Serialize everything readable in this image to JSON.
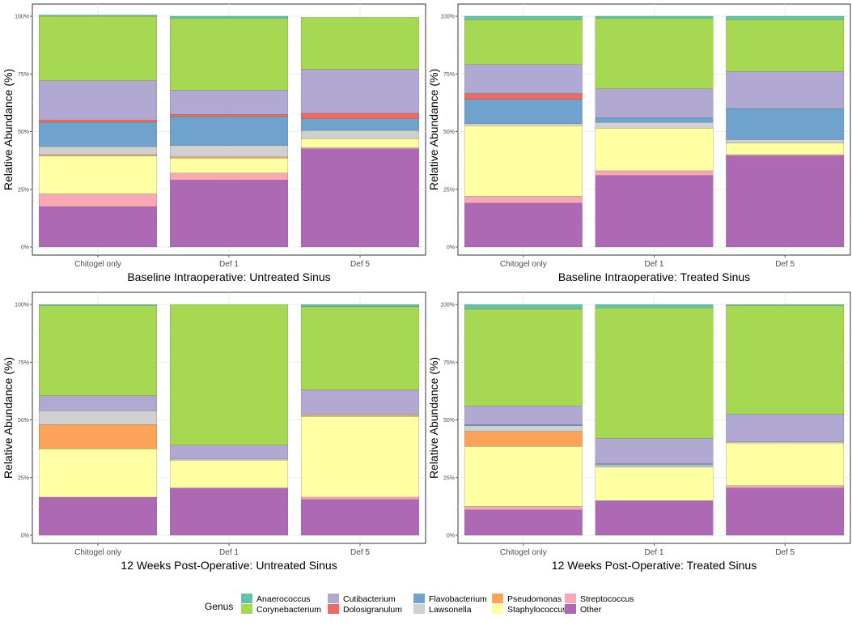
{
  "colors": {
    "Anaerococcus": "#66C2A5",
    "Corynebacterium": "#A6D854",
    "Cutibacterium": "#B1A9D2",
    "Dolosigranulum": "#EA6A64",
    "Flavobacterium": "#6FA3CD",
    "Lawsonella": "#D0D0D0",
    "Pseudomonas": "#FBA35B",
    "Staphylococcus": "#FFFFA3",
    "Streptococcus": "#FBA8B6",
    "Other": "#AD69B4"
  },
  "legend": {
    "title": "Genus",
    "entries": [
      "Anaerococcus",
      "Corynebacterium",
      "Cutibacterium",
      "Dolosigranulum",
      "Flavobacterium",
      "Lawsonella",
      "Pseudomonas",
      "Staphylococcus",
      "Streptococcus",
      "Other"
    ]
  },
  "chart_data": [
    {
      "type": "bar",
      "stacked": true,
      "title": "Baseline Intraoperative: Untreated Sinus",
      "ylabel": "Relative Abundance (%)",
      "ylim": [
        0,
        100
      ],
      "yticks": [
        "0%",
        "25%",
        "50%",
        "75%",
        "100%"
      ],
      "categories": [
        "Chitogel only",
        "Def 1",
        "Def 5"
      ],
      "series": [
        {
          "name": "Other",
          "values": [
            17.5,
            29,
            42.5
          ]
        },
        {
          "name": "Streptococcus",
          "values": [
            5.5,
            3,
            0.5
          ]
        },
        {
          "name": "Staphylococcus",
          "values": [
            16.5,
            6.5,
            4
          ]
        },
        {
          "name": "Pseudomonas",
          "values": [
            0.5,
            0.5,
            0
          ]
        },
        {
          "name": "Lawsonella",
          "values": [
            3.5,
            5,
            3.5
          ]
        },
        {
          "name": "Flavobacterium",
          "values": [
            10.5,
            12.5,
            5
          ]
        },
        {
          "name": "Dolosigranulum",
          "values": [
            1,
            1,
            2.5
          ]
        },
        {
          "name": "Cutibacterium",
          "values": [
            17,
            10.5,
            19
          ]
        },
        {
          "name": "Corynebacterium",
          "values": [
            28,
            31,
            22.5
          ]
        },
        {
          "name": "Anaerococcus",
          "values": [
            0.5,
            1,
            0
          ]
        }
      ]
    },
    {
      "type": "bar",
      "stacked": true,
      "title": "Baseline Intraoperative: Treated Sinus",
      "ylabel": "Relative Abundance (%)",
      "ylim": [
        0,
        100
      ],
      "yticks": [
        "0%",
        "25%",
        "50%",
        "75%",
        "100%"
      ],
      "categories": [
        "Chitogel only",
        "Def 1",
        "Def 5"
      ],
      "series": [
        {
          "name": "Other",
          "values": [
            19,
            31,
            39.5
          ]
        },
        {
          "name": "Streptococcus",
          "values": [
            3,
            2,
            0.5
          ]
        },
        {
          "name": "Staphylococcus",
          "values": [
            30.5,
            18.5,
            5
          ]
        },
        {
          "name": "Pseudomonas",
          "values": [
            0,
            0,
            0
          ]
        },
        {
          "name": "Lawsonella",
          "values": [
            1,
            2.5,
            1.5
          ]
        },
        {
          "name": "Flavobacterium",
          "values": [
            10.5,
            2,
            13.5
          ]
        },
        {
          "name": "Dolosigranulum",
          "values": [
            2.5,
            0,
            0
          ]
        },
        {
          "name": "Cutibacterium",
          "values": [
            12.5,
            12.5,
            16
          ]
        },
        {
          "name": "Corynebacterium",
          "values": [
            19.5,
            30.5,
            22.5
          ]
        },
        {
          "name": "Anaerococcus",
          "values": [
            1.5,
            1,
            1.5
          ]
        }
      ]
    },
    {
      "type": "bar",
      "stacked": true,
      "title": "12 Weeks Post-Operative: Untreated Sinus",
      "ylabel": "Relative Abundance (%)",
      "ylim": [
        0,
        100
      ],
      "yticks": [
        "0%",
        "25%",
        "50%",
        "75%",
        "100%"
      ],
      "categories": [
        "Chitogel only",
        "Def 1",
        "Def 5"
      ],
      "series": [
        {
          "name": "Other",
          "values": [
            16.5,
            20.5,
            15.5
          ]
        },
        {
          "name": "Streptococcus",
          "values": [
            0,
            0,
            1
          ]
        },
        {
          "name": "Staphylococcus",
          "values": [
            21,
            12,
            35
          ]
        },
        {
          "name": "Pseudomonas",
          "values": [
            10.5,
            0,
            0.5
          ]
        },
        {
          "name": "Lawsonella",
          "values": [
            6,
            0.5,
            0.5
          ]
        },
        {
          "name": "Flavobacterium",
          "values": [
            0,
            0,
            0
          ]
        },
        {
          "name": "Dolosigranulum",
          "values": [
            0,
            0,
            0
          ]
        },
        {
          "name": "Cutibacterium",
          "values": [
            6.5,
            6,
            10.5
          ]
        },
        {
          "name": "Corynebacterium",
          "values": [
            39,
            61,
            36
          ]
        },
        {
          "name": "Anaerococcus",
          "values": [
            0.5,
            0,
            1
          ]
        }
      ]
    },
    {
      "type": "bar",
      "stacked": true,
      "title": "12 Weeks Post-Operative: Treated Sinus",
      "ylabel": "Relative Abundance (%)",
      "ylim": [
        0,
        100
      ],
      "yticks": [
        "0%",
        "25%",
        "50%",
        "75%",
        "100%"
      ],
      "categories": [
        "Chitogel only",
        "Def 1",
        "Def 5"
      ],
      "series": [
        {
          "name": "Other",
          "values": [
            11,
            15,
            20.5
          ]
        },
        {
          "name": "Streptococcus",
          "values": [
            1.5,
            0,
            1
          ]
        },
        {
          "name": "Staphylococcus",
          "values": [
            26,
            14.5,
            18.5
          ]
        },
        {
          "name": "Pseudomonas",
          "values": [
            6.5,
            0,
            0
          ]
        },
        {
          "name": "Lawsonella",
          "values": [
            2.5,
            1,
            0.5
          ]
        },
        {
          "name": "Flavobacterium",
          "values": [
            0.5,
            0.5,
            0
          ]
        },
        {
          "name": "Dolosigranulum",
          "values": [
            0,
            0,
            0
          ]
        },
        {
          "name": "Cutibacterium",
          "values": [
            8,
            11,
            12
          ]
        },
        {
          "name": "Corynebacterium",
          "values": [
            42,
            56.5,
            47
          ]
        },
        {
          "name": "Anaerococcus",
          "values": [
            2,
            1.5,
            0.5
          ]
        }
      ]
    }
  ]
}
